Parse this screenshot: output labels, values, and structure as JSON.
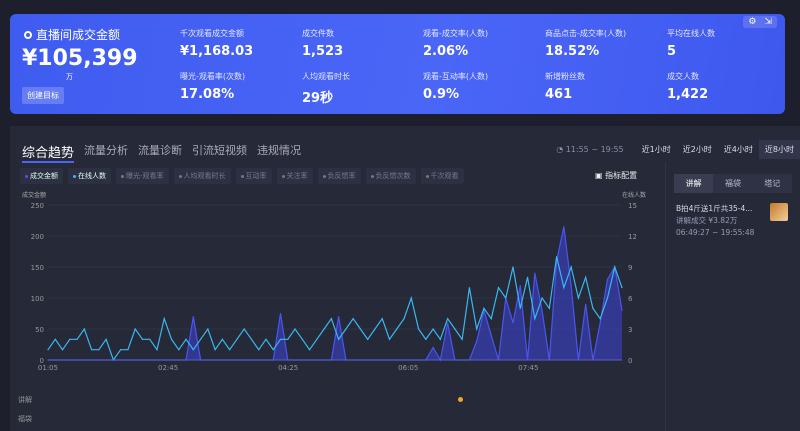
{
  "banner": {
    "title": "直播间成交金额",
    "value": "¥105,399",
    "unit": "万",
    "goal_button": "创建目标",
    "icons": [
      "gear-icon",
      "collapse-icon"
    ],
    "metrics": [
      {
        "label": "千次观看成交金额",
        "value": "¥1,168.03"
      },
      {
        "label": "成交件数",
        "value": "1,523"
      },
      {
        "label": "观看-成交率(人数)",
        "value": "2.06%"
      },
      {
        "label": "商品点击-成交率(人数)",
        "value": "18.52%"
      },
      {
        "label": "平均在线人数",
        "value": "5"
      },
      {
        "label": "曝光-观看率(次数)",
        "value": "17.08%"
      },
      {
        "label": "人均观看时长",
        "value": "29秒"
      },
      {
        "label": "观看-互动率(人数)",
        "value": "0.9%"
      },
      {
        "label": "新增粉丝数",
        "value": "461"
      },
      {
        "label": "成交人数",
        "value": "1,422"
      }
    ]
  },
  "tabs": [
    "综合趋势",
    "流量分析",
    "流量诊断",
    "引流短视频",
    "违规情况"
  ],
  "time_range": "11:55 ~ 19:55",
  "range_buttons": [
    "近1小时",
    "近2小时",
    "近4小时",
    "近8小时"
  ],
  "chips": [
    "成交金额",
    "在线人数",
    "曝光-观看率",
    "人均观看时长",
    "互动率",
    "关注率",
    "负反馈率",
    "负反馈次数",
    "千次观看"
  ],
  "metric_config": "指标配置",
  "side": {
    "tabs": [
      "讲解",
      "福袋",
      "塔记"
    ],
    "item": {
      "title": "B拍4斤送1斤共35-4...",
      "sub": "讲解成交 ¥3.82万",
      "time": "06:49:27 ~ 19:55:48"
    }
  },
  "row_labels": [
    "讲解",
    "福袋"
  ],
  "colors": {
    "sales": "#4a55f0",
    "online": "#3ab8f0",
    "accent": "#4a66f7"
  },
  "chart_data": {
    "type": "line",
    "x_range": [
      "01:05",
      "09:03"
    ],
    "x_ticks": [
      "01:05",
      "02:45",
      "04:25",
      "06:05",
      "07:45"
    ],
    "y_left": {
      "label": "成交金额",
      "range": [
        0,
        250
      ],
      "ticks": [
        0,
        50,
        100,
        150,
        200,
        250
      ]
    },
    "y_right": {
      "label": "在线人数",
      "range": [
        0,
        15
      ],
      "ticks": [
        0,
        3,
        6,
        9,
        12,
        15
      ]
    },
    "series": [
      {
        "name": "成交金额",
        "axis": "left",
        "values": [
          0,
          0,
          0,
          0,
          0,
          0,
          0,
          0,
          0,
          0,
          0,
          0,
          0,
          0,
          0,
          0,
          0,
          0,
          0,
          0,
          70,
          0,
          0,
          0,
          0,
          0,
          0,
          0,
          0,
          0,
          0,
          0,
          75,
          0,
          0,
          0,
          0,
          0,
          0,
          0,
          70,
          0,
          0,
          0,
          0,
          0,
          0,
          0,
          0,
          0,
          0,
          0,
          0,
          20,
          0,
          60,
          0,
          0,
          0,
          30,
          80,
          40,
          0,
          100,
          60,
          120,
          0,
          140,
          80,
          0,
          160,
          215,
          120,
          0,
          90,
          0,
          60,
          130,
          150,
          80
        ]
      },
      {
        "name": "在线人数",
        "axis": "right",
        "values": [
          1,
          2,
          1,
          2,
          2,
          3,
          1,
          1,
          2,
          0,
          1,
          1,
          3,
          2,
          2,
          1,
          4,
          2,
          1,
          2,
          1,
          2,
          3,
          1,
          2,
          1,
          2,
          3,
          2,
          1,
          2,
          1,
          2,
          2,
          3,
          2,
          1,
          2,
          3,
          4,
          2,
          3,
          4,
          3,
          2,
          3,
          4,
          2,
          3,
          4,
          6,
          3,
          2,
          3,
          2,
          4,
          3,
          2,
          7,
          3,
          5,
          4,
          7,
          6,
          9,
          5,
          8,
          4,
          6,
          5,
          10,
          7,
          9,
          6,
          8,
          5,
          4,
          6,
          9,
          7
        ]
      }
    ]
  }
}
